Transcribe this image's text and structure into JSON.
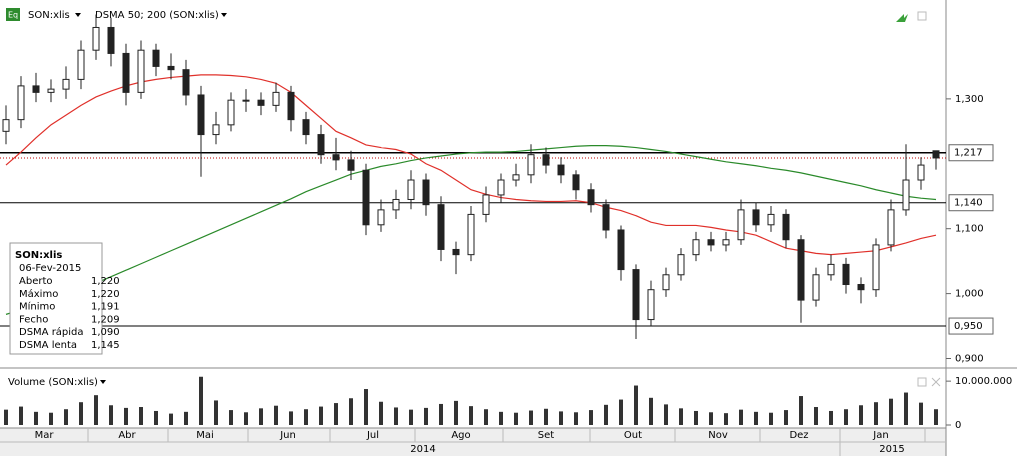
{
  "chart_data": {
    "type": "candlestick",
    "title": "SON:xlis",
    "indicator": "DSMA 50; 200 (SON:xlis)",
    "ylim": [
      0.89,
      1.44
    ],
    "yticks": [
      {
        "value": 1.3,
        "label": "1,300"
      },
      {
        "value": 1.1,
        "label": "1,100"
      },
      {
        "value": 1.0,
        "label": "1,000"
      },
      {
        "value": 0.9,
        "label": "0,900"
      }
    ],
    "open": [
      1.25,
      1.268,
      1.32,
      1.31,
      1.315,
      1.33,
      1.375,
      1.41,
      1.37,
      1.31,
      1.375,
      1.35,
      1.345,
      1.306,
      1.245,
      1.26,
      1.298,
      1.298,
      1.29,
      1.31,
      1.268,
      1.245,
      1.214,
      1.206,
      1.19,
      1.106,
      1.129,
      1.145,
      1.175,
      1.137,
      1.068,
      1.06,
      1.122,
      1.152,
      1.175,
      1.183,
      1.214,
      1.198,
      1.183,
      1.16,
      1.137,
      1.098,
      1.037,
      0.96,
      1.006,
      1.029,
      1.06,
      1.083,
      1.075,
      1.083,
      1.129,
      1.106,
      1.122,
      1.083,
      0.99,
      1.029,
      1.045,
      1.014,
      1.006,
      1.075,
      1.129,
      1.175,
      1.22
    ],
    "high": [
      1.29,
      1.335,
      1.34,
      1.33,
      1.35,
      1.39,
      1.43,
      1.425,
      1.385,
      1.39,
      1.385,
      1.37,
      1.36,
      1.32,
      1.28,
      1.31,
      1.315,
      1.31,
      1.325,
      1.32,
      1.28,
      1.26,
      1.24,
      1.22,
      1.2,
      1.145,
      1.16,
      1.19,
      1.185,
      1.15,
      1.08,
      1.135,
      1.165,
      1.185,
      1.2,
      1.23,
      1.225,
      1.21,
      1.19,
      1.17,
      1.145,
      1.105,
      1.045,
      1.02,
      1.04,
      1.07,
      1.095,
      1.095,
      1.095,
      1.145,
      1.14,
      1.135,
      1.13,
      1.09,
      1.04,
      1.06,
      1.055,
      1.025,
      1.085,
      1.145,
      1.23,
      1.21,
      1.22
    ],
    "low": [
      1.23,
      1.255,
      1.295,
      1.295,
      1.3,
      1.315,
      1.36,
      1.35,
      1.29,
      1.3,
      1.335,
      1.33,
      1.29,
      1.18,
      1.23,
      1.25,
      1.28,
      1.275,
      1.28,
      1.25,
      1.23,
      1.2,
      1.19,
      1.175,
      1.09,
      1.095,
      1.115,
      1.13,
      1.12,
      1.05,
      1.03,
      1.05,
      1.11,
      1.14,
      1.165,
      1.17,
      1.185,
      1.17,
      1.145,
      1.125,
      1.085,
      1.02,
      0.93,
      0.95,
      0.995,
      1.02,
      1.05,
      1.065,
      1.065,
      1.075,
      1.095,
      1.095,
      1.07,
      0.955,
      0.98,
      1.02,
      1.0,
      0.985,
      0.995,
      1.065,
      1.12,
      1.16,
      1.191
    ],
    "close": [
      1.268,
      1.32,
      1.31,
      1.315,
      1.33,
      1.375,
      1.41,
      1.37,
      1.31,
      1.375,
      1.35,
      1.345,
      1.306,
      1.245,
      1.26,
      1.298,
      1.298,
      1.29,
      1.31,
      1.268,
      1.245,
      1.214,
      1.206,
      1.19,
      1.106,
      1.129,
      1.145,
      1.175,
      1.137,
      1.068,
      1.06,
      1.122,
      1.152,
      1.175,
      1.183,
      1.214,
      1.198,
      1.183,
      1.16,
      1.137,
      1.098,
      1.037,
      0.96,
      1.006,
      1.029,
      1.06,
      1.083,
      1.075,
      1.083,
      1.129,
      1.106,
      1.122,
      1.083,
      0.99,
      1.029,
      1.045,
      1.014,
      1.006,
      1.075,
      1.129,
      1.175,
      1.198,
      1.209
    ],
    "series": [
      {
        "name": "DSMA rápida",
        "color": "#e0302a",
        "values": [
          1.198,
          1.218,
          1.24,
          1.26,
          1.275,
          1.29,
          1.303,
          1.312,
          1.32,
          1.326,
          1.33,
          1.333,
          1.335,
          1.337,
          1.337,
          1.336,
          1.334,
          1.33,
          1.324,
          1.31,
          1.29,
          1.27,
          1.25,
          1.24,
          1.229,
          1.225,
          1.222,
          1.215,
          1.2,
          1.19,
          1.175,
          1.16,
          1.153,
          1.148,
          1.145,
          1.143,
          1.142,
          1.142,
          1.143,
          1.14,
          1.133,
          1.128,
          1.12,
          1.11,
          1.105,
          1.105,
          1.105,
          1.102,
          1.098,
          1.095,
          1.09,
          1.08,
          1.07,
          1.066,
          1.062,
          1.06,
          1.062,
          1.064,
          1.066,
          1.072,
          1.078,
          1.085,
          1.09
        ]
      },
      {
        "name": "DSMA lenta",
        "color": "#2a8a2a",
        "values": [
          0.968,
          0.975,
          0.982,
          0.99,
          0.998,
          1.006,
          1.016,
          1.026,
          1.036,
          1.046,
          1.056,
          1.066,
          1.076,
          1.086,
          1.096,
          1.106,
          1.116,
          1.126,
          1.136,
          1.146,
          1.157,
          1.166,
          1.175,
          1.184,
          1.19,
          1.196,
          1.2,
          1.205,
          1.209,
          1.212,
          1.215,
          1.217,
          1.218,
          1.218,
          1.219,
          1.221,
          1.223,
          1.225,
          1.227,
          1.228,
          1.228,
          1.227,
          1.225,
          1.222,
          1.219,
          1.215,
          1.211,
          1.207,
          1.203,
          1.2,
          1.197,
          1.193,
          1.19,
          1.186,
          1.181,
          1.176,
          1.171,
          1.166,
          1.16,
          1.155,
          1.15,
          1.147,
          1.145
        ]
      }
    ],
    "hlines": [
      {
        "value": 1.217,
        "label": "1,217",
        "color": "#000000"
      },
      {
        "value": 1.14,
        "label": "1,140",
        "color": "#000000"
      },
      {
        "value": 0.95,
        "label": "0,950",
        "color": "#000000"
      }
    ],
    "last_line": {
      "value": 1.209,
      "color": "#c00000"
    },
    "volume": {
      "title": "Volume (SON:xlis)",
      "color": "#333333",
      "ylim": [
        0,
        11400000
      ],
      "yticks": [
        {
          "value": 10000000,
          "label": "10.000.000"
        },
        0
      ],
      "values": [
        3500000,
        4200000,
        3000000,
        2800000,
        3600000,
        5200000,
        6800000,
        4500000,
        3900000,
        4100000,
        3200000,
        2600000,
        3000000,
        11000000,
        5600000,
        3400000,
        2900000,
        3800000,
        4400000,
        3100000,
        3600000,
        4200000,
        5000000,
        6100000,
        8200000,
        5300000,
        4000000,
        3500000,
        3900000,
        4800000,
        5500000,
        4300000,
        3600000,
        3000000,
        2800000,
        3300000,
        3700000,
        3100000,
        2900000,
        3400000,
        4600000,
        5800000,
        9000000,
        6200000,
        4700000,
        3800000,
        3200000,
        2900000,
        2700000,
        3500000,
        3000000,
        2800000,
        3400000,
        6600000,
        4100000,
        3200000,
        3600000,
        4500000,
        5200000,
        6000000,
        7400000,
        5100000,
        3600000
      ]
    },
    "months": [
      "Mar",
      "Abr",
      "Mai",
      "Jun",
      "Jul",
      "Ago",
      "Set",
      "Out",
      "Nov",
      "Dez",
      "Jan"
    ],
    "years": [
      "2014",
      "2015"
    ],
    "info": {
      "title": "SON:xlis",
      "date": "06-Fev-2015",
      "rows": [
        [
          "Aberto",
          "1,220"
        ],
        [
          "Máximo",
          "1,220"
        ],
        [
          "Mínimo",
          "1,191"
        ],
        [
          "Fecho",
          "1,209"
        ],
        [
          "DSMA rápida",
          "1,090"
        ],
        [
          "DSMA lenta",
          "1,145"
        ]
      ]
    }
  }
}
